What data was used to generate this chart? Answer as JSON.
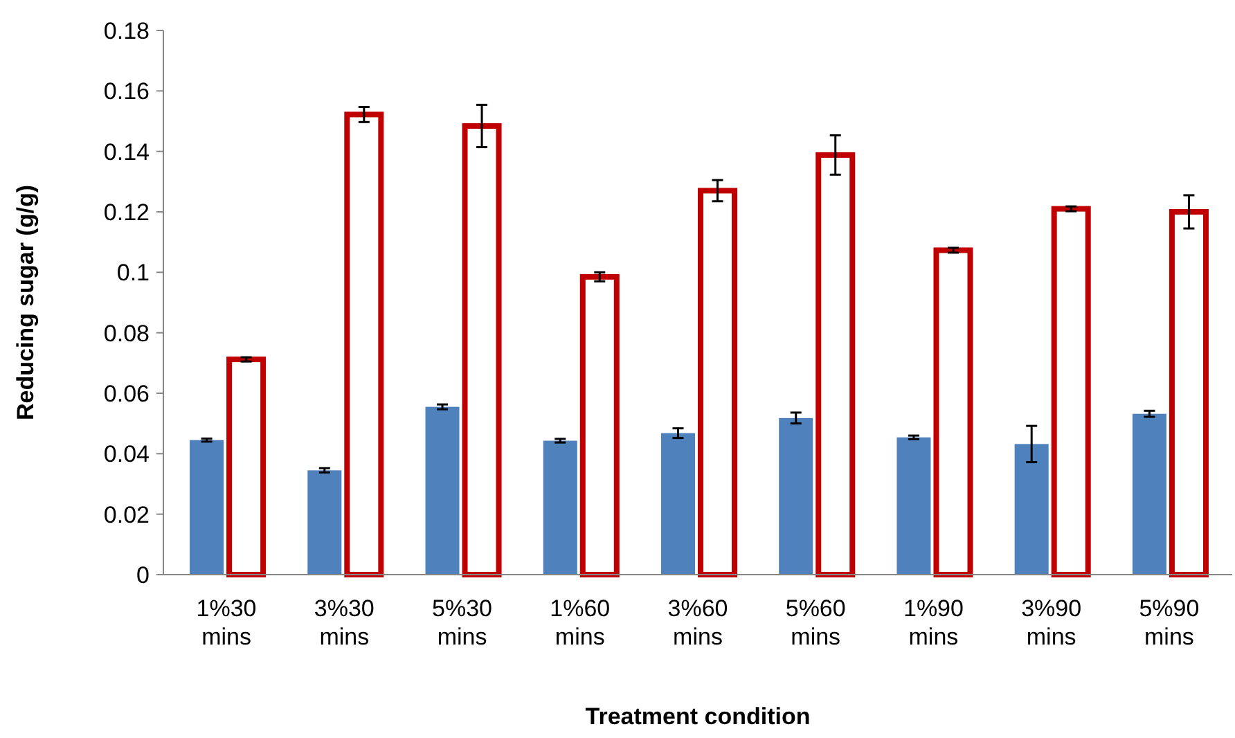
{
  "chart_data": {
    "type": "bar",
    "xlabel": "Treatment condition",
    "ylabel": "Reducing sugar (g/g)",
    "categories": [
      "1%30 mins",
      "3%30 mins",
      "5%30 mins",
      "1%60 mins",
      "3%60 mins",
      "5%60 mins",
      "1%90 mins",
      "3%90 mins",
      "5%90 mins"
    ],
    "series": [
      {
        "color": "#4f81bd",
        "values": [
          0.0445,
          0.0345,
          0.0555,
          0.0443,
          0.0468,
          0.0518,
          0.0454,
          0.0432,
          0.0532
        ],
        "errors": [
          0.0005,
          0.0007,
          0.0008,
          0.0006,
          0.0016,
          0.0018,
          0.0006,
          0.006,
          0.001
        ]
      },
      {
        "color": "#c00000",
        "values": [
          0.0712,
          0.1522,
          0.1484,
          0.0985,
          0.127,
          0.1388,
          0.1073,
          0.121,
          0.12
        ],
        "errors": [
          0.0007,
          0.0025,
          0.007,
          0.0015,
          0.0035,
          0.0065,
          0.0008,
          0.0008,
          0.0055
        ]
      }
    ],
    "ylim": [
      0,
      0.18
    ],
    "yticks": [
      0,
      0.02,
      0.04,
      0.06,
      0.08,
      0.1,
      0.12,
      0.14,
      0.16,
      0.18
    ],
    "grid": false
  }
}
